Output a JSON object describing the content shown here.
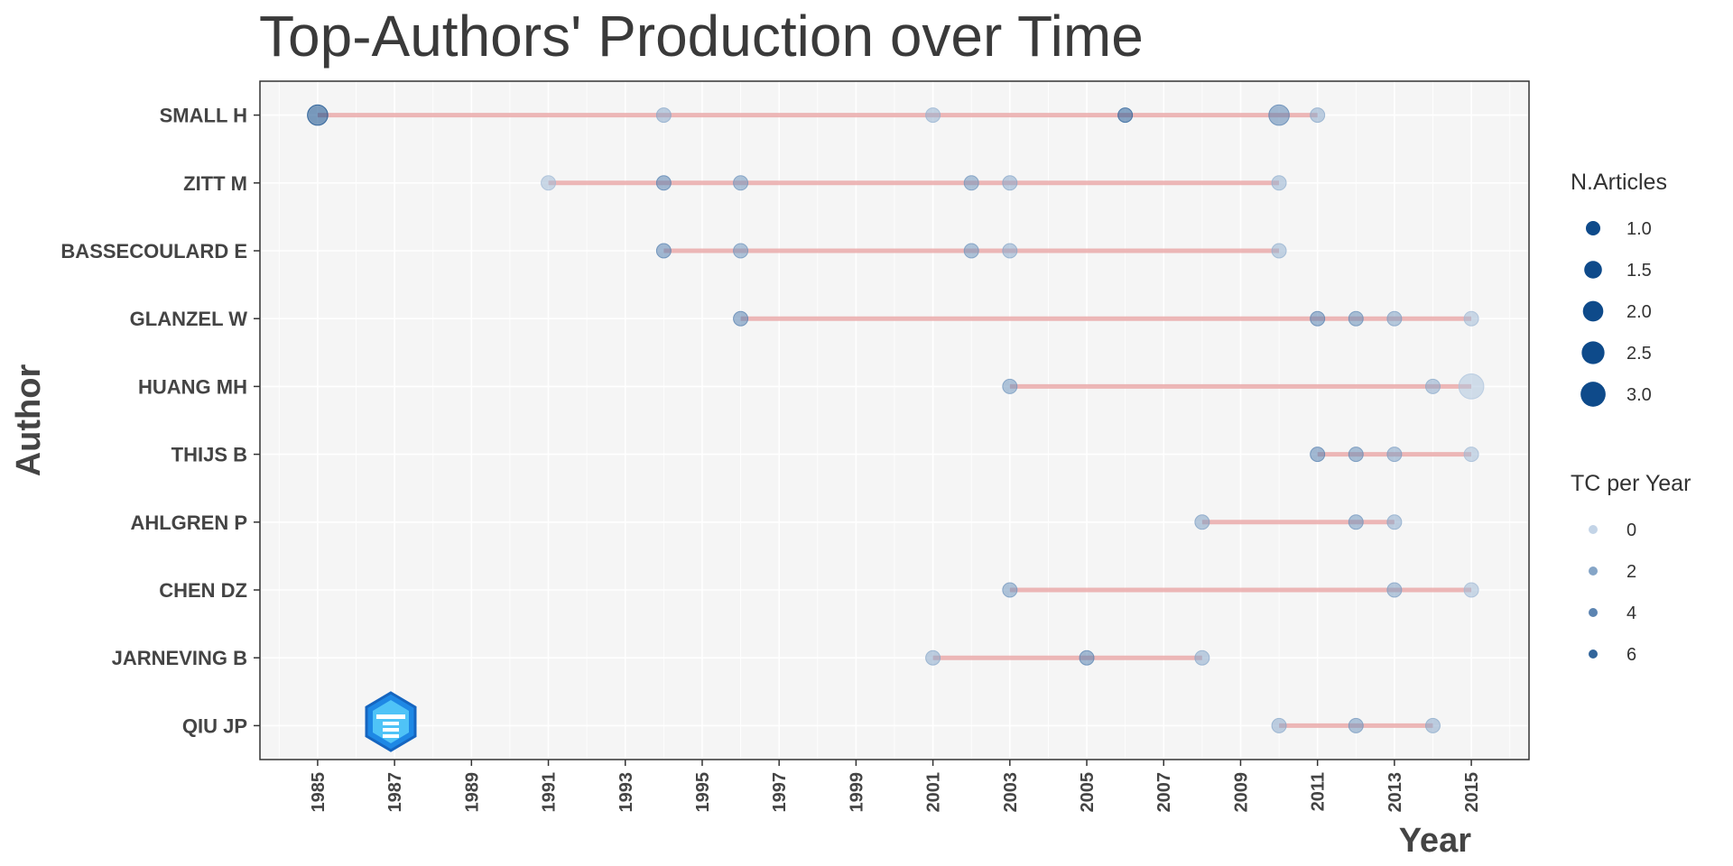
{
  "chart_data": {
    "type": "scatter",
    "title": "Top-Authors' Production over Time",
    "xlabel": "Year",
    "ylabel": "Author",
    "xlim": [
      1983.5,
      2016.5
    ],
    "x_ticks": [
      1985,
      1987,
      1989,
      1991,
      1993,
      1995,
      1997,
      1999,
      2001,
      2003,
      2005,
      2007,
      2009,
      2011,
      2013,
      2015
    ],
    "grid": true,
    "authors": [
      "SMALL H",
      "ZITT M",
      "BASSECOULARD E",
      "GLANZEL W",
      "HUANG MH",
      "THIJS B",
      "AHLGREN P",
      "CHEN DZ",
      "JARNEVING B",
      "QIU JP"
    ],
    "lines": [
      {
        "author": "SMALL H",
        "start": 1985,
        "end": 2011
      },
      {
        "author": "ZITT M",
        "start": 1991,
        "end": 2010
      },
      {
        "author": "BASSECOULARD E",
        "start": 1994,
        "end": 2010
      },
      {
        "author": "GLANZEL W",
        "start": 1996,
        "end": 2015
      },
      {
        "author": "HUANG MH",
        "start": 2003,
        "end": 2015
      },
      {
        "author": "THIJS B",
        "start": 2011,
        "end": 2015
      },
      {
        "author": "AHLGREN P",
        "start": 2008,
        "end": 2013
      },
      {
        "author": "CHEN DZ",
        "start": 2003,
        "end": 2015
      },
      {
        "author": "JARNEVING B",
        "start": 2001,
        "end": 2008
      },
      {
        "author": "QIU JP",
        "start": 2010,
        "end": 2014
      }
    ],
    "points": [
      {
        "author": "SMALL H",
        "year": 1985,
        "articles": 2,
        "tc_per_year": 7
      },
      {
        "author": "SMALL H",
        "year": 1994,
        "articles": 1,
        "tc_per_year": 2
      },
      {
        "author": "SMALL H",
        "year": 2001,
        "articles": 1,
        "tc_per_year": 1.5
      },
      {
        "author": "SMALL H",
        "year": 2006,
        "articles": 1,
        "tc_per_year": 6
      },
      {
        "author": "SMALL H",
        "year": 2010,
        "articles": 2,
        "tc_per_year": 4
      },
      {
        "author": "SMALL H",
        "year": 2011,
        "articles": 1,
        "tc_per_year": 2
      },
      {
        "author": "ZITT M",
        "year": 1991,
        "articles": 1,
        "tc_per_year": 1
      },
      {
        "author": "ZITT M",
        "year": 1994,
        "articles": 1,
        "tc_per_year": 4
      },
      {
        "author": "ZITT M",
        "year": 1996,
        "articles": 1,
        "tc_per_year": 3
      },
      {
        "author": "ZITT M",
        "year": 2002,
        "articles": 1,
        "tc_per_year": 3
      },
      {
        "author": "ZITT M",
        "year": 2003,
        "articles": 1,
        "tc_per_year": 2
      },
      {
        "author": "ZITT M",
        "year": 2010,
        "articles": 1,
        "tc_per_year": 1.5
      },
      {
        "author": "BASSECOULARD E",
        "year": 1994,
        "articles": 1,
        "tc_per_year": 4
      },
      {
        "author": "BASSECOULARD E",
        "year": 1996,
        "articles": 1,
        "tc_per_year": 3
      },
      {
        "author": "BASSECOULARD E",
        "year": 2002,
        "articles": 1,
        "tc_per_year": 3
      },
      {
        "author": "BASSECOULARD E",
        "year": 2003,
        "articles": 1,
        "tc_per_year": 2
      },
      {
        "author": "BASSECOULARD E",
        "year": 2010,
        "articles": 1,
        "tc_per_year": 1.5
      },
      {
        "author": "GLANZEL W",
        "year": 1996,
        "articles": 1,
        "tc_per_year": 4
      },
      {
        "author": "GLANZEL W",
        "year": 2011,
        "articles": 1,
        "tc_per_year": 4
      },
      {
        "author": "GLANZEL W",
        "year": 2012,
        "articles": 1,
        "tc_per_year": 3.5
      },
      {
        "author": "GLANZEL W",
        "year": 2013,
        "articles": 1,
        "tc_per_year": 2.5
      },
      {
        "author": "GLANZEL W",
        "year": 2015,
        "articles": 1,
        "tc_per_year": 1
      },
      {
        "author": "HUANG MH",
        "year": 2003,
        "articles": 1,
        "tc_per_year": 3
      },
      {
        "author": "HUANG MH",
        "year": 2014,
        "articles": 1,
        "tc_per_year": 2
      },
      {
        "author": "HUANG MH",
        "year": 2015,
        "articles": 3,
        "tc_per_year": 0.5
      },
      {
        "author": "THIJS B",
        "year": 2011,
        "articles": 1,
        "tc_per_year": 4
      },
      {
        "author": "THIJS B",
        "year": 2012,
        "articles": 1,
        "tc_per_year": 3.5
      },
      {
        "author": "THIJS B",
        "year": 2013,
        "articles": 1,
        "tc_per_year": 2.5
      },
      {
        "author": "THIJS B",
        "year": 2015,
        "articles": 1,
        "tc_per_year": 1
      },
      {
        "author": "AHLGREN P",
        "year": 2008,
        "articles": 1,
        "tc_per_year": 2.5
      },
      {
        "author": "AHLGREN P",
        "year": 2012,
        "articles": 1,
        "tc_per_year": 3
      },
      {
        "author": "AHLGREN P",
        "year": 2013,
        "articles": 1,
        "tc_per_year": 2
      },
      {
        "author": "CHEN DZ",
        "year": 2003,
        "articles": 1,
        "tc_per_year": 3
      },
      {
        "author": "CHEN DZ",
        "year": 2013,
        "articles": 1,
        "tc_per_year": 2.5
      },
      {
        "author": "CHEN DZ",
        "year": 2015,
        "articles": 1,
        "tc_per_year": 1
      },
      {
        "author": "JARNEVING B",
        "year": 2001,
        "articles": 1,
        "tc_per_year": 2
      },
      {
        "author": "JARNEVING B",
        "year": 2005,
        "articles": 1,
        "tc_per_year": 4
      },
      {
        "author": "JARNEVING B",
        "year": 2008,
        "articles": 1,
        "tc_per_year": 2
      },
      {
        "author": "QIU JP",
        "year": 2010,
        "articles": 1,
        "tc_per_year": 2
      },
      {
        "author": "QIU JP",
        "year": 2012,
        "articles": 1,
        "tc_per_year": 3
      },
      {
        "author": "QIU JP",
        "year": 2014,
        "articles": 1,
        "tc_per_year": 2
      }
    ],
    "legend": {
      "placement": "right",
      "size_title": "N.Articles",
      "size_levels": [
        {
          "value": 1.0,
          "label": "1.0"
        },
        {
          "value": 1.5,
          "label": "1.5"
        },
        {
          "value": 2.0,
          "label": "2.0"
        },
        {
          "value": 2.5,
          "label": "2.5"
        },
        {
          "value": 3.0,
          "label": "3.0"
        }
      ],
      "color_title": "TC per Year",
      "color_levels": [
        {
          "value": 0,
          "label": "0"
        },
        {
          "value": 2,
          "label": "2"
        },
        {
          "value": 4,
          "label": "4"
        },
        {
          "value": 6,
          "label": "6"
        }
      ]
    },
    "colors": {
      "point_high": "#0e4a8a",
      "point_low": "#b9cde3",
      "segment": "#e8a5a5",
      "panel_bg": "#f5f5f5",
      "gridline": "#ffffff"
    }
  }
}
